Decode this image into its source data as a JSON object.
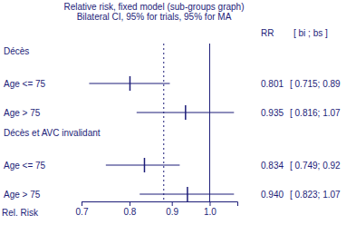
{
  "chart_data": {
    "type": "forest",
    "title": "Relative risk, fixed model (sub-groups graph)",
    "subtitle": "Bilateral CI, 95% for trials, 95% for MA",
    "columns": [
      "RR",
      "[ bi ; bs ]"
    ],
    "x_label": "Rel. Risk",
    "log": "x",
    "xlim": [
      0.7,
      1.08
    ],
    "xticks": [
      0.7,
      0.8,
      0.9,
      {
        "value": 1,
        "label": "1.0"
      }
    ],
    "null_value": 1,
    "reference_value": 0.88,
    "color": "#1c1c78",
    "groups": [
      {
        "name": "Décès",
        "rows": [
          {
            "label": "Age <= 75",
            "rr": 0.801,
            "rr_label": "0.801",
            "lo": 0.715,
            "hi": 0.895,
            "ci_label": "[ 0.715; 0.89"
          },
          {
            "label": "Age > 75",
            "rr": 0.935,
            "rr_label": "0.935",
            "lo": 0.816,
            "hi": 1.07,
            "ci_label": "[ 0.816; 1.07"
          }
        ]
      },
      {
        "name": "Décès et AVC invalidant",
        "rows": [
          {
            "label": "Age <= 75",
            "rr": 0.834,
            "rr_label": "0.834",
            "lo": 0.749,
            "hi": 0.92,
            "ci_label": "[ 0.749; 0.92"
          },
          {
            "label": "Age > 75",
            "rr": 0.94,
            "rr_label": "0.940",
            "lo": 0.823,
            "hi": 1.07,
            "ci_label": "[ 0.823; 1.07"
          }
        ]
      }
    ]
  }
}
